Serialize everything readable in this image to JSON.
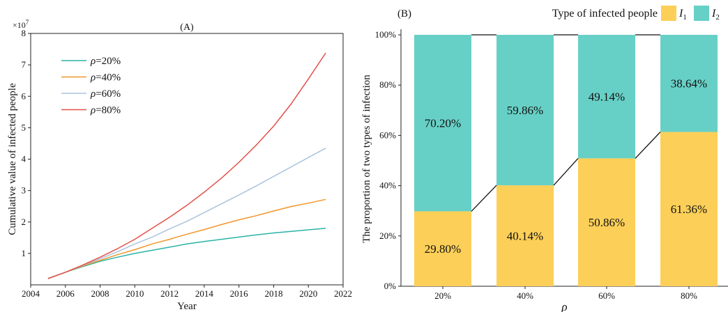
{
  "chart_data": [
    {
      "panel_label": "(A)",
      "type": "line",
      "xlabel": "Year",
      "ylabel": "Cumulative value of infected people",
      "y_multiplier_label": "×10",
      "y_multiplier_exp": "7",
      "xlim": [
        2004,
        2022
      ],
      "ylim": [
        0,
        8
      ],
      "xticks": [
        2004,
        2006,
        2008,
        2010,
        2012,
        2014,
        2016,
        2018,
        2020,
        2022
      ],
      "yticks": [
        1,
        2,
        3,
        4,
        5,
        6,
        7,
        8
      ],
      "legend_position": "top-left",
      "grid": false,
      "x": [
        2005,
        2006,
        2007,
        2008,
        2009,
        2010,
        2011,
        2012,
        2013,
        2014,
        2015,
        2016,
        2017,
        2018,
        2019,
        2020,
        2021
      ],
      "series": [
        {
          "name": "ρ=20%",
          "symbol": "ρ",
          "suffix": "=20%",
          "color": "#2ab3a6",
          "values": [
            0.2,
            0.4,
            0.58,
            0.75,
            0.88,
            1.0,
            1.1,
            1.2,
            1.3,
            1.38,
            1.45,
            1.52,
            1.59,
            1.65,
            1.7,
            1.75,
            1.8
          ]
        },
        {
          "name": "ρ=40%",
          "symbol": "ρ",
          "suffix": "=40%",
          "color": "#f0962a",
          "values": [
            0.2,
            0.4,
            0.6,
            0.78,
            0.96,
            1.12,
            1.3,
            1.45,
            1.61,
            1.76,
            1.92,
            2.07,
            2.2,
            2.35,
            2.49,
            2.6,
            2.72
          ]
        },
        {
          "name": "ρ=60%",
          "symbol": "ρ",
          "suffix": "=60%",
          "color": "#aac4df",
          "values": [
            0.2,
            0.4,
            0.62,
            0.83,
            1.05,
            1.3,
            1.52,
            1.78,
            2.02,
            2.3,
            2.58,
            2.86,
            3.15,
            3.45,
            3.75,
            4.05,
            4.35
          ]
        },
        {
          "name": "ρ=80%",
          "symbol": "ρ",
          "suffix": "=80%",
          "color": "#e2504a",
          "values": [
            0.2,
            0.4,
            0.63,
            0.88,
            1.15,
            1.45,
            1.8,
            2.15,
            2.53,
            2.95,
            3.4,
            3.9,
            4.45,
            5.05,
            5.75,
            6.55,
            7.38
          ]
        }
      ]
    },
    {
      "panel_label": "(B)",
      "type": "bar",
      "stacked": true,
      "xlabel": "ρ",
      "ylabel": "The proportion of two types of infection",
      "ylim": [
        0,
        100
      ],
      "yticks": [
        "0%",
        "20%",
        "40%",
        "60%",
        "80%",
        "100%"
      ],
      "categories": [
        "20%",
        "40%",
        "60%",
        "80%"
      ],
      "legend_title": "Type of infected people",
      "legend_position": "top-right",
      "grid": false,
      "series": [
        {
          "name": "I1",
          "base": "I",
          "sub": "1",
          "color": "#fccf58",
          "values": [
            29.8,
            40.14,
            50.86,
            61.36
          ],
          "labels": [
            "29.80%",
            "40.14%",
            "50.86%",
            "61.36%"
          ]
        },
        {
          "name": "I2",
          "base": "I",
          "sub": "2",
          "color": "#67d0c6",
          "values": [
            70.2,
            59.86,
            49.14,
            38.64
          ],
          "labels": [
            "70.20%",
            "59.86%",
            "49.14%",
            "38.64%"
          ]
        }
      ]
    }
  ]
}
